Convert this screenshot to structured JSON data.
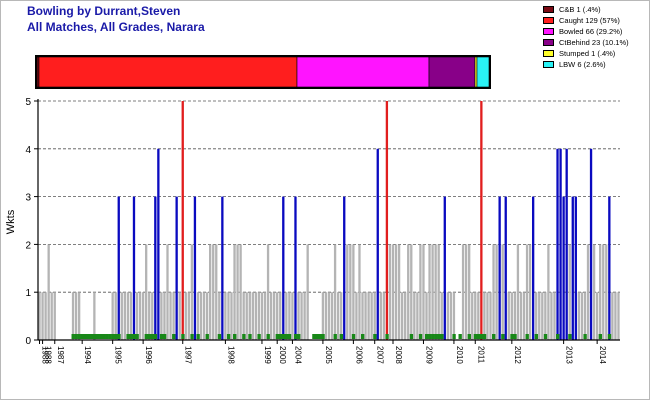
{
  "header": {
    "title_line1": "Bowling by Durrant,Steven",
    "title_line2": "All Matches, All Grades, Narara"
  },
  "chart_data": {
    "type": "bar",
    "ylabel": "Wkts",
    "ylim": [
      0,
      5
    ],
    "yticks": [
      "0",
      "1",
      "2",
      "3",
      "4",
      "5"
    ],
    "grid": "horizontal dashed",
    "legend_placement": "top-right",
    "dismissals": {
      "colors": [
        "#7a0a14",
        "#ff1e1e",
        "#ff14ff",
        "#880088",
        "#ffff2a",
        "#29f2f5"
      ],
      "legend": [
        "C&B 1 (.4%)",
        "Caught 129 (57%)",
        "Bowled 66 (29.2%)",
        "CtBehind 23 (10.1%)",
        "Stumped 1 (.4%)",
        "LBW 6 (2.6%)"
      ],
      "counts": [
        1,
        129,
        66,
        23,
        1,
        6
      ]
    },
    "bar_color_legend": {
      "gray": "#b4b4b4",
      "blue": "#0a0ac0",
      "red": "#e11e1e",
      "green": "#188818"
    },
    "season_labels": [
      {
        "label": "1988",
        "match": 0
      },
      {
        "label": "1988",
        "match": 1
      },
      {
        "label": "1987",
        "match": 5
      },
      {
        "label": "1994",
        "match": 14
      },
      {
        "label": "1995",
        "match": 24
      },
      {
        "label": "1996",
        "match": 34
      },
      {
        "label": "1997",
        "match": 47
      },
      {
        "label": "1998",
        "match": 61
      },
      {
        "label": "1999",
        "match": 73
      },
      {
        "label": "2000",
        "match": 78
      },
      {
        "label": "2004",
        "match": 83
      },
      {
        "label": "2005",
        "match": 93
      },
      {
        "label": "2006",
        "match": 103
      },
      {
        "label": "2007",
        "match": 110
      },
      {
        "label": "2008",
        "match": 116
      },
      {
        "label": "2009",
        "match": 126
      },
      {
        "label": "2010",
        "match": 136
      },
      {
        "label": "2011",
        "match": 143
      },
      {
        "label": "2012",
        "match": 155
      },
      {
        "label": "2013",
        "match": 172
      },
      {
        "label": "2014",
        "match": 183
      }
    ],
    "values": [
      1,
      1,
      1,
      2,
      1,
      1,
      0,
      0,
      0,
      0,
      0,
      1,
      1,
      1,
      0,
      0,
      0,
      0,
      1,
      0,
      0,
      0,
      0,
      0,
      1,
      1,
      3,
      1,
      1,
      1,
      1,
      3,
      1,
      1,
      1,
      2,
      1,
      1,
      3,
      4,
      1,
      1,
      2,
      1,
      1,
      3,
      1,
      5,
      1,
      1,
      2,
      3,
      1,
      1,
      1,
      1,
      2,
      2,
      2,
      1,
      3,
      1,
      1,
      1,
      2,
      2,
      2,
      1,
      1,
      1,
      1,
      1,
      1,
      1,
      1,
      2,
      1,
      1,
      1,
      1,
      3,
      1,
      1,
      1,
      3,
      1,
      1,
      1,
      2,
      0,
      0,
      0,
      0,
      1,
      1,
      1,
      1,
      2,
      1,
      1,
      3,
      2,
      2,
      2,
      1,
      2,
      1,
      1,
      1,
      1,
      1,
      4,
      1,
      1,
      5,
      2,
      2,
      2,
      2,
      1,
      1,
      2,
      2,
      1,
      1,
      2,
      2,
      1,
      2,
      2,
      2,
      2,
      1,
      3,
      1,
      1,
      1,
      0,
      0,
      2,
      2,
      2,
      1,
      1,
      1,
      5,
      1,
      1,
      1,
      2,
      2,
      3,
      2,
      3,
      1,
      1,
      1,
      2,
      1,
      1,
      2,
      2,
      3,
      1,
      1,
      1,
      1,
      2,
      1,
      1,
      4,
      4,
      3,
      4,
      2,
      3,
      3,
      1,
      1,
      1,
      2,
      4,
      2,
      1,
      2,
      2,
      2,
      3,
      1,
      1,
      1
    ],
    "colors": [
      "g",
      "g",
      "g",
      "g",
      "g",
      "g",
      "g",
      "g",
      "g",
      "g",
      "g",
      "g",
      "g",
      "g",
      "g",
      "g",
      "g",
      "g",
      "g",
      "g",
      "g",
      "g",
      "g",
      "g",
      "g",
      "g",
      "b",
      "g",
      "g",
      "g",
      "g",
      "b",
      "g",
      "g",
      "g",
      "g",
      "g",
      "g",
      "b",
      "b",
      "g",
      "g",
      "g",
      "g",
      "g",
      "b",
      "g",
      "r",
      "g",
      "g",
      "g",
      "b",
      "g",
      "g",
      "g",
      "g",
      "g",
      "g",
      "g",
      "g",
      "b",
      "g",
      "g",
      "g",
      "g",
      "g",
      "g",
      "g",
      "g",
      "g",
      "g",
      "g",
      "g",
      "g",
      "g",
      "g",
      "g",
      "g",
      "g",
      "g",
      "b",
      "g",
      "g",
      "g",
      "b",
      "g",
      "g",
      "g",
      "g",
      "g",
      "g",
      "g",
      "g",
      "g",
      "g",
      "g",
      "g",
      "g",
      "g",
      "g",
      "b",
      "g",
      "g",
      "g",
      "g",
      "g",
      "g",
      "g",
      "g",
      "g",
      "g",
      "b",
      "g",
      "g",
      "r",
      "g",
      "g",
      "g",
      "g",
      "g",
      "g",
      "g",
      "g",
      "g",
      "g",
      "g",
      "g",
      "g",
      "g",
      "g",
      "g",
      "g",
      "g",
      "b",
      "g",
      "g",
      "g",
      "g",
      "g",
      "g",
      "g",
      "g",
      "g",
      "g",
      "g",
      "r",
      "g",
      "g",
      "g",
      "g",
      "g",
      "b",
      "g",
      "b",
      "g",
      "g",
      "g",
      "g",
      "g",
      "g",
      "g",
      "g",
      "b",
      "g",
      "g",
      "g",
      "g",
      "g",
      "g",
      "g",
      "b",
      "b",
      "b",
      "b",
      "g",
      "b",
      "b",
      "g",
      "g",
      "g",
      "g",
      "b",
      "g",
      "g",
      "g",
      "g",
      "g",
      "b",
      "g",
      "g",
      "g"
    ],
    "no_bowl_matches": [
      11,
      12,
      13,
      14,
      15,
      16,
      17,
      18,
      19,
      20,
      21,
      22,
      23,
      24,
      25,
      26,
      29,
      30,
      31,
      32,
      35,
      36,
      37,
      38,
      40,
      41,
      44,
      47,
      50,
      52,
      55,
      59,
      62,
      64,
      67,
      69,
      72,
      75,
      78,
      79,
      80,
      81,
      82,
      84,
      85,
      90,
      91,
      92,
      93,
      97,
      99,
      103,
      106,
      110,
      114,
      122,
      125,
      127,
      128,
      129,
      130,
      131,
      132,
      136,
      138,
      141,
      143,
      144,
      145,
      146,
      149,
      152,
      155,
      156,
      160,
      163,
      166,
      170,
      174,
      179,
      184,
      187
    ]
  }
}
